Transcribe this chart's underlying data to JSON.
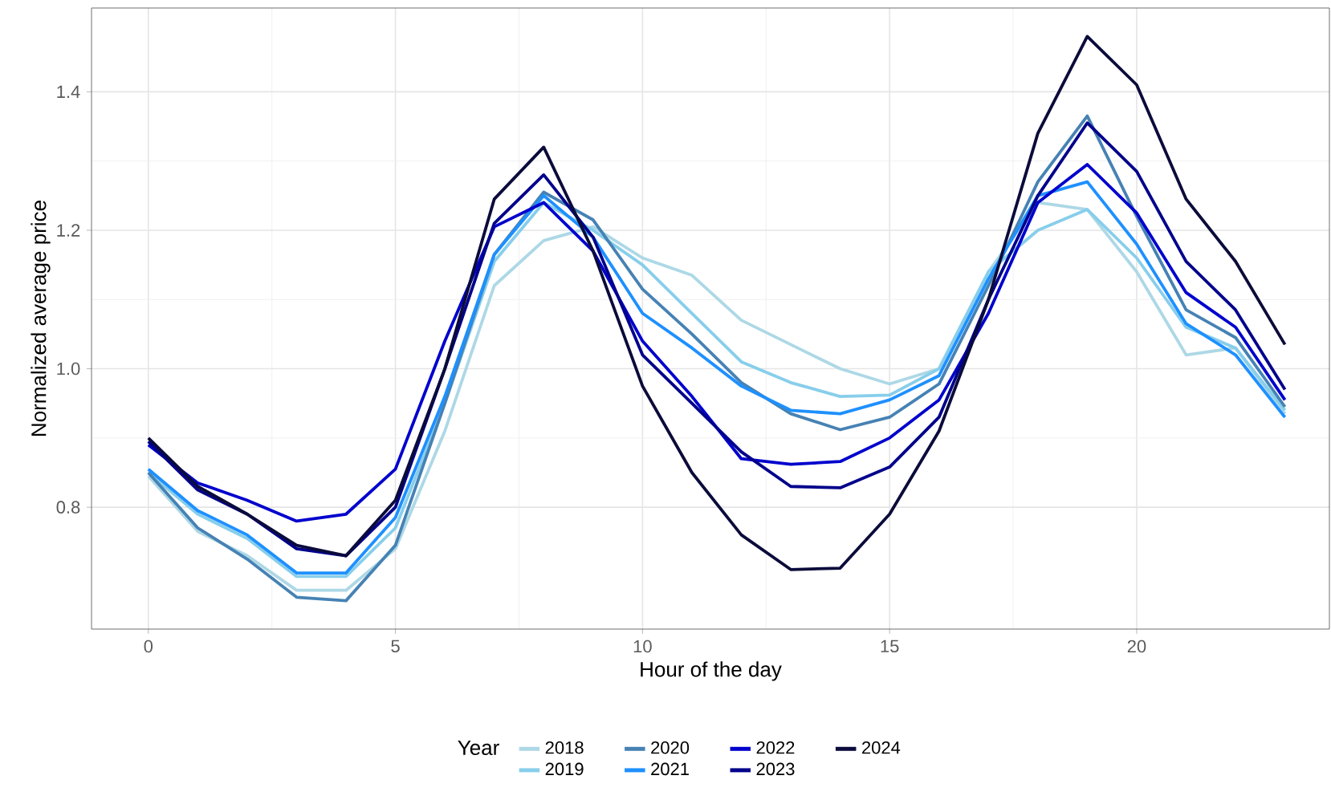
{
  "chart_data": {
    "type": "line",
    "xlabel": "Hour of the day",
    "ylabel": "Normalized average price",
    "legend_title": "Year",
    "x": [
      0,
      1,
      2,
      3,
      4,
      5,
      6,
      7,
      8,
      9,
      10,
      11,
      12,
      13,
      14,
      15,
      16,
      17,
      18,
      19,
      20,
      21,
      22,
      23
    ],
    "xlim": [
      -1.15,
      23.9
    ],
    "ylim": [
      0.624,
      1.521
    ],
    "xticks": [
      0,
      5,
      10,
      15,
      20
    ],
    "yticks": [
      0.8,
      {
        "value": 1.0,
        "label": "1.0"
      },
      1.2,
      1.4
    ],
    "grid": true,
    "legend": "bottom",
    "marker": "none",
    "line_style": "solid",
    "series": [
      {
        "name": "2018",
        "color": "#add8e6",
        "values": [
          0.845,
          0.765,
          0.73,
          0.68,
          0.68,
          0.74,
          0.91,
          1.12,
          1.185,
          1.205,
          1.16,
          1.135,
          1.07,
          1.035,
          1.0,
          0.978,
          1.0,
          1.14,
          1.24,
          1.23,
          1.14,
          1.02,
          1.03,
          0.935
        ]
      },
      {
        "name": "2019",
        "color": "#87ceeb",
        "values": [
          0.85,
          0.79,
          0.755,
          0.7,
          0.7,
          0.77,
          0.95,
          1.155,
          1.24,
          1.2,
          1.15,
          1.08,
          1.01,
          0.98,
          0.96,
          0.962,
          1.0,
          1.14,
          1.2,
          1.23,
          1.16,
          1.06,
          1.03,
          0.94
        ]
      },
      {
        "name": "2020",
        "color": "#4682b4",
        "values": [
          0.85,
          0.77,
          0.725,
          0.67,
          0.665,
          0.745,
          0.95,
          1.165,
          1.255,
          1.215,
          1.115,
          1.05,
          0.98,
          0.935,
          0.912,
          0.93,
          0.978,
          1.12,
          1.27,
          1.365,
          1.22,
          1.085,
          1.045,
          0.945
        ]
      },
      {
        "name": "2021",
        "color": "#1e90ff",
        "values": [
          0.855,
          0.795,
          0.76,
          0.705,
          0.705,
          0.785,
          0.96,
          1.165,
          1.25,
          1.19,
          1.08,
          1.03,
          0.975,
          0.94,
          0.935,
          0.955,
          0.99,
          1.13,
          1.25,
          1.27,
          1.18,
          1.065,
          1.02,
          0.93
        ]
      },
      {
        "name": "2022",
        "color": "#0000cd",
        "values": [
          0.89,
          0.835,
          0.81,
          0.78,
          0.79,
          0.855,
          1.04,
          1.205,
          1.24,
          1.17,
          1.04,
          0.96,
          0.87,
          0.862,
          0.866,
          0.9,
          0.955,
          1.08,
          1.24,
          1.295,
          1.225,
          1.11,
          1.06,
          0.955
        ]
      },
      {
        "name": "2023",
        "color": "#00008b",
        "values": [
          0.895,
          0.825,
          0.79,
          0.74,
          0.73,
          0.8,
          1.0,
          1.21,
          1.28,
          1.19,
          1.02,
          0.95,
          0.88,
          0.83,
          0.828,
          0.858,
          0.93,
          1.1,
          1.25,
          1.355,
          1.285,
          1.155,
          1.085,
          0.97
        ]
      },
      {
        "name": "2024",
        "color": "#0b0b3b",
        "values": [
          0.9,
          0.83,
          0.79,
          0.745,
          0.73,
          0.81,
          1.0,
          1.245,
          1.32,
          1.17,
          0.975,
          0.85,
          0.76,
          0.71,
          0.712,
          0.79,
          0.91,
          1.1,
          1.34,
          1.48,
          1.41,
          1.245,
          1.155,
          1.035
        ]
      }
    ]
  }
}
